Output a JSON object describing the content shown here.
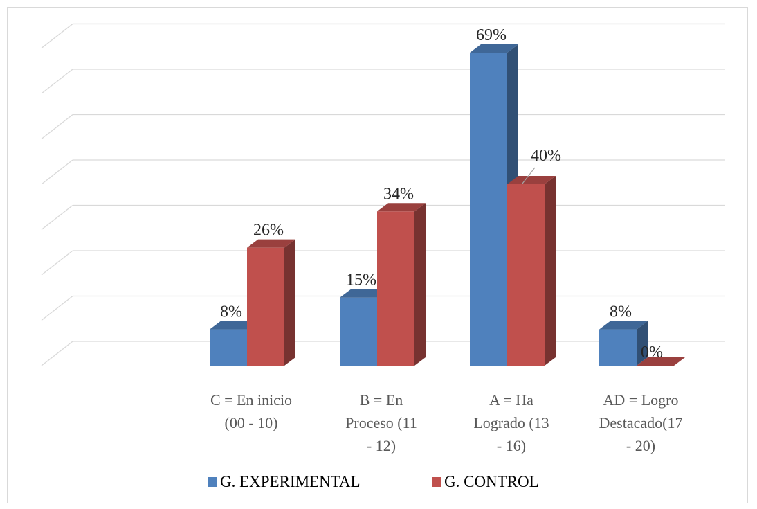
{
  "chart_data": {
    "type": "bar",
    "categories": [
      [
        "C = En inicio",
        "(00 - 10)"
      ],
      [
        "B = En",
        "Proceso   (11",
        "- 12)"
      ],
      [
        "A = Ha",
        "Logrado   (13",
        "- 16)"
      ],
      [
        "AD = Logro",
        "Destacado(17",
        "- 20)"
      ]
    ],
    "series": [
      {
        "name": "G. EXPERIMENTAL",
        "values": [
          8,
          15,
          69,
          8
        ],
        "labels": [
          "8%",
          "15%",
          "69%",
          "8%"
        ],
        "color": "#4f81bd"
      },
      {
        "name": "G. CONTROL",
        "values": [
          26,
          34,
          40,
          0
        ],
        "labels": [
          "26%",
          "34%",
          "40%",
          "0%"
        ],
        "color": "#c0504d"
      }
    ],
    "ylim": [
      0,
      70
    ],
    "grid": true,
    "legend_position": "bottom",
    "style": "3d-clustered-column"
  }
}
